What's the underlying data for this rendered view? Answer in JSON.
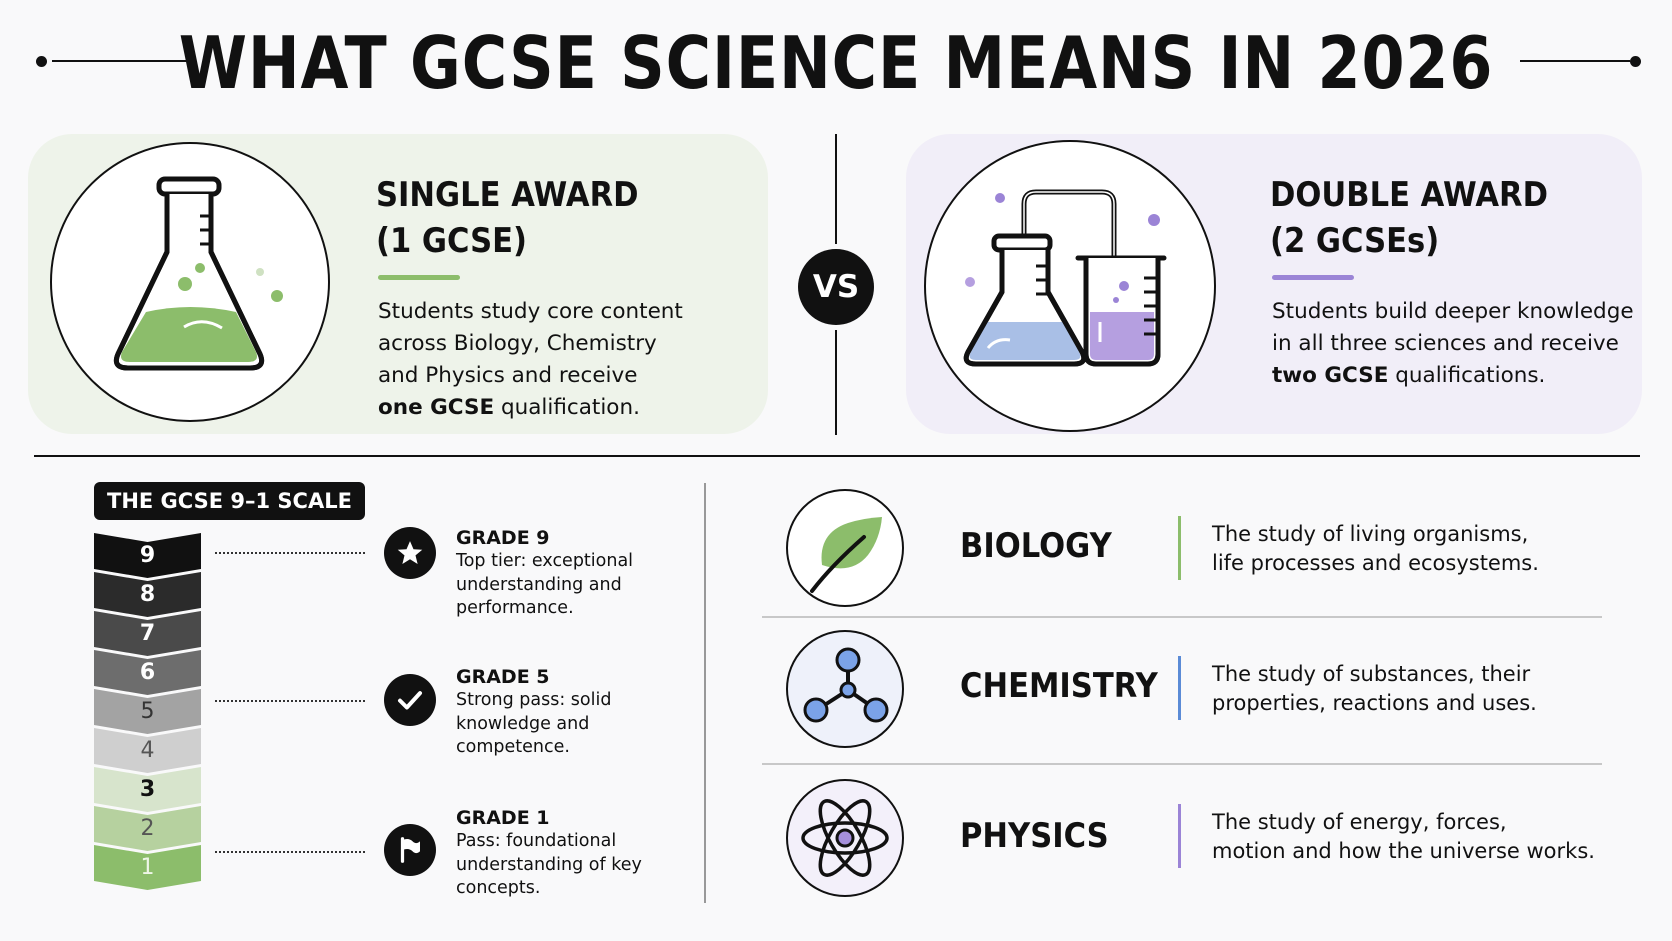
{
  "title": "WHAT GCSE SCIENCE MEANS IN 2026",
  "colors": {
    "single_accent": "#8cbd6b",
    "double_accent": "#9b84d6",
    "biology_accent": "#8cbd6b",
    "chemistry_accent": "#5b8bd6",
    "physics_accent": "#9b84d6"
  },
  "single_award": {
    "title_line1": "SINGLE AWARD",
    "title_line2": "(1 GCSE)",
    "desc_line1": "Students study core content",
    "desc_line2": "across Biology, Chemistry",
    "desc_line3": "and Physics and receive",
    "desc_bold": "one GCSE",
    "desc_tail": " qualification.",
    "icon": "conical-flask-icon"
  },
  "vs_label": "VS",
  "double_award": {
    "title_line1": "DOUBLE AWARD",
    "title_line2": "(2 GCSEs)",
    "desc_line1": "Students build deeper knowledge",
    "desc_line2": "in all three sciences and receive",
    "desc_bold": "two GCSE",
    "desc_tail": " qualifications.",
    "icon": "flask-and-beaker-icon"
  },
  "scale": {
    "badge": "THE GCSE 9–1 SCALE",
    "grades": [
      "9",
      "8",
      "7",
      "6",
      "5",
      "4",
      "3",
      "2",
      "1"
    ],
    "highlights": [
      {
        "title": "GRADE 9",
        "desc": "Top tier: exceptional understanding and performance.",
        "icon": "star-icon"
      },
      {
        "title": "GRADE 5",
        "desc": "Strong pass: solid knowledge and competence.",
        "icon": "checkmark-icon"
      },
      {
        "title": "GRADE 1",
        "desc": "Pass: foundational understanding of key concepts.",
        "icon": "flag-icon"
      }
    ]
  },
  "subjects": [
    {
      "name": "BIOLOGY",
      "desc_line1": "The study of living organisms,",
      "desc_line2": "life processes and ecosystems.",
      "icon": "leaf-icon"
    },
    {
      "name": "CHEMISTRY",
      "desc_line1": "The study of substances, their",
      "desc_line2": "properties, reactions and uses.",
      "icon": "molecule-icon"
    },
    {
      "name": "PHYSICS",
      "desc_line1": "The study of energy, forces,",
      "desc_line2": "motion and how the universe works.",
      "icon": "atom-icon"
    }
  ]
}
